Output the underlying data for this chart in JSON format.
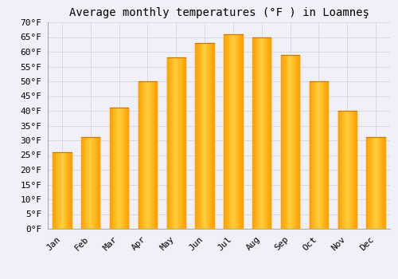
{
  "title": "Average monthly temperatures (°F ) in Loamneş",
  "months": [
    "Jan",
    "Feb",
    "Mar",
    "Apr",
    "May",
    "Jun",
    "Jul",
    "Aug",
    "Sep",
    "Oct",
    "Nov",
    "Dec"
  ],
  "values": [
    26,
    31,
    41,
    50,
    58,
    63,
    66,
    65,
    59,
    50,
    40,
    31
  ],
  "bar_color_center": "#FFD040",
  "bar_color_edge": "#FFA000",
  "background_color": "#f0f0f8",
  "plot_bg_color": "#f0f0f8",
  "grid_color": "#d8d8e8",
  "ylim": [
    0,
    70
  ],
  "yticks": [
    0,
    5,
    10,
    15,
    20,
    25,
    30,
    35,
    40,
    45,
    50,
    55,
    60,
    65,
    70
  ],
  "title_fontsize": 10,
  "tick_fontsize": 8,
  "tick_font": "monospace"
}
